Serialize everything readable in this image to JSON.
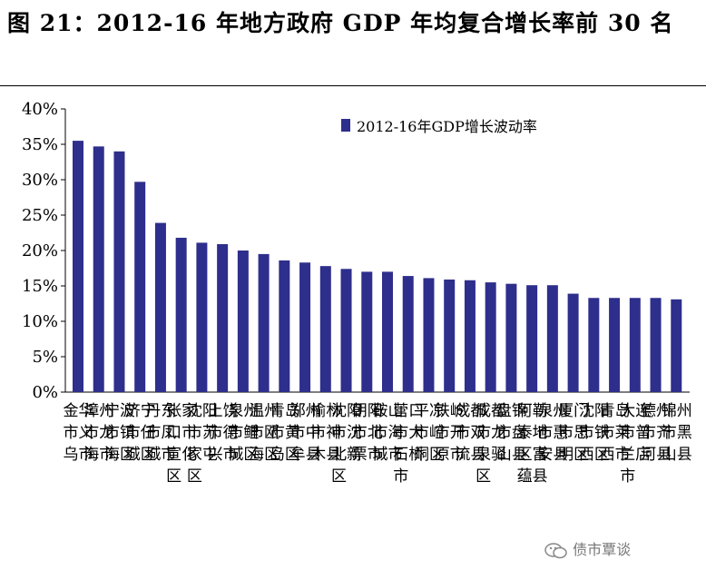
{
  "title": "图 21：2012-16 年地方政府 GDP 年均复合增长率前 30 名",
  "watermark": "债市覃谈",
  "chart_data": {
    "type": "bar",
    "title": "",
    "xlabel": "",
    "ylabel": "",
    "ylim": [
      0,
      0.4
    ],
    "yticks": [
      "0%",
      "5%",
      "10%",
      "15%",
      "20%",
      "25%",
      "30%",
      "35%",
      "40%"
    ],
    "grid": false,
    "legend_position": "top-right",
    "bar_color": "#2E2E8C",
    "series": [
      {
        "name": "2012-16年GDP增长波动率",
        "values": [
          0.355,
          0.347,
          0.34,
          0.297,
          0.239,
          0.218,
          0.211,
          0.209,
          0.2,
          0.195,
          0.186,
          0.183,
          0.178,
          0.174,
          0.17,
          0.17,
          0.164,
          0.161,
          0.159,
          0.158,
          0.155,
          0.153,
          0.151,
          0.151,
          0.139,
          0.133,
          0.133,
          0.133,
          0.133,
          0.131
        ]
      }
    ],
    "categories": [
      "金华市义乌市",
      "漳州市龙海市",
      "宁波市镇海区",
      "济宁市任城区",
      "丹东市凤城市",
      "张家口市宣化区",
      "沈阳市苏家屯区",
      "上饶市德兴市",
      "泉州市鲤城区",
      "温州市瓯海区",
      "青岛市黄岛区",
      "郑州市中牟县",
      "榆林市神木县",
      "沈阳市沈北新区",
      "朝阳市北票市",
      "鞍山市海城市",
      "营口市大石桥市",
      "平凉市崆峒区",
      "铁岭市开原市",
      "成都市双流县",
      "成都市龙泉驿区",
      "盘锦市盘山县",
      "阿勒泰地区富蕴县",
      "泉州市惠安县",
      "厦门市思明区",
      "沈阳市铁西区",
      "青岛市莱西市",
      "大连市普兰店市",
      "德州市齐河县",
      "锦州市黑山县"
    ]
  }
}
